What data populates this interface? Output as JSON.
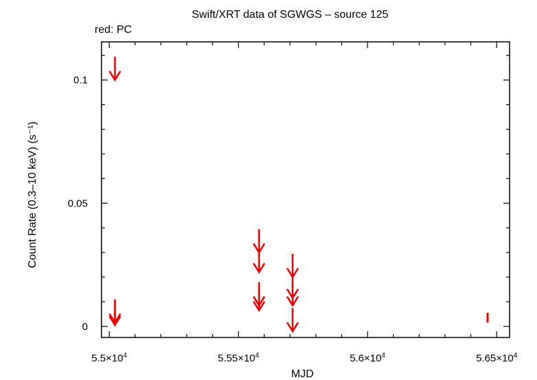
{
  "chart_data": {
    "type": "scatter",
    "title": "Swift/XRT data of SGWGS – source 125",
    "legend": "red: PC",
    "xlabel": "MJD",
    "ylabel": "Count Rate (0.3–10 keV) (s⁻¹)",
    "xlim": [
      54970,
      56550
    ],
    "ylim": [
      -0.0045,
      0.1155
    ],
    "x_ticks": [
      {
        "value": 55000,
        "mantissa": "5.5",
        "exp": "4"
      },
      {
        "value": 55500,
        "mantissa": "5.55",
        "exp": "4"
      },
      {
        "value": 56000,
        "mantissa": "5.6",
        "exp": "4"
      },
      {
        "value": 56500,
        "mantissa": "5.65",
        "exp": "4"
      }
    ],
    "y_ticks": [
      {
        "value": 0,
        "label": "0"
      },
      {
        "value": 0.05,
        "label": "0.05"
      },
      {
        "value": 0.1,
        "label": "0.1"
      }
    ],
    "series": [
      {
        "name": "PC",
        "color": "#ee0000",
        "upper_limits": [
          {
            "x": 55022,
            "y": 0.1
          },
          {
            "x": 55022,
            "y": 0.0015
          },
          {
            "x": 55022,
            "y": 0.0005
          },
          {
            "x": 55580,
            "y": 0.03
          },
          {
            "x": 55580,
            "y": 0.022
          },
          {
            "x": 55580,
            "y": 0.0085
          },
          {
            "x": 55580,
            "y": 0.0065
          },
          {
            "x": 55710,
            "y": 0.02
          },
          {
            "x": 55710,
            "y": 0.0115
          },
          {
            "x": 55710,
            "y": 0.0085
          },
          {
            "x": 55710,
            "y": -0.002
          }
        ],
        "points": [
          {
            "x": 56465,
            "y": 0.0035,
            "yerr": 0.002
          }
        ]
      }
    ]
  }
}
